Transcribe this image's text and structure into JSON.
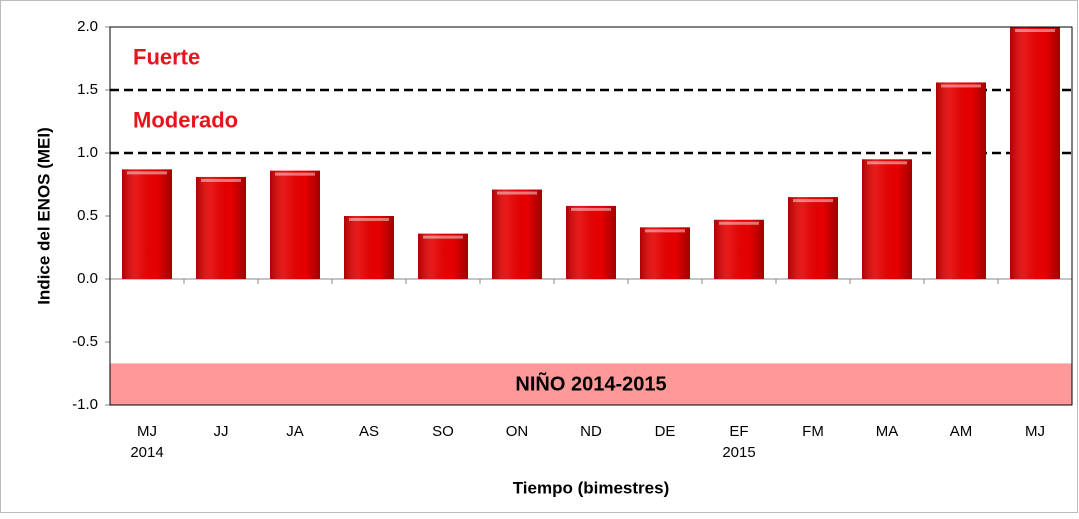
{
  "chart_data": {
    "type": "bar",
    "categories": [
      "MJ",
      "JJ",
      "JA",
      "AS",
      "SO",
      "ON",
      "ND",
      "DE",
      "EF",
      "FM",
      "MA",
      "AM",
      "MJ"
    ],
    "category_years": [
      "2014",
      null,
      null,
      null,
      null,
      null,
      null,
      null,
      "2015",
      null,
      null,
      null,
      null
    ],
    "values": [
      0.87,
      0.81,
      0.86,
      0.5,
      0.36,
      0.71,
      0.58,
      0.41,
      0.47,
      0.65,
      0.95,
      1.56,
      2.0
    ],
    "color": "#e60000",
    "ylim": [
      -1.0,
      2.0
    ],
    "yticks": [
      {
        "value": 2,
        "label": "2.0"
      },
      1.5,
      {
        "value": 1,
        "label": "1.0"
      },
      0.5,
      {
        "value": 0,
        "label": "0.0"
      },
      -0.5,
      {
        "value": -1,
        "label": "-1.0"
      }
    ],
    "y_label": "Indice del ENOS (MEI)",
    "x_label": "Tiempo (bimestres)",
    "thresholds": [
      {
        "value": 1.0,
        "label": "Moderado"
      },
      {
        "value": 1.5,
        "label": "Fuerte"
      }
    ],
    "band": {
      "label": "NIÑO 2014-2015",
      "from": -1.0,
      "to": -0.67,
      "color": "#ff9999"
    }
  }
}
